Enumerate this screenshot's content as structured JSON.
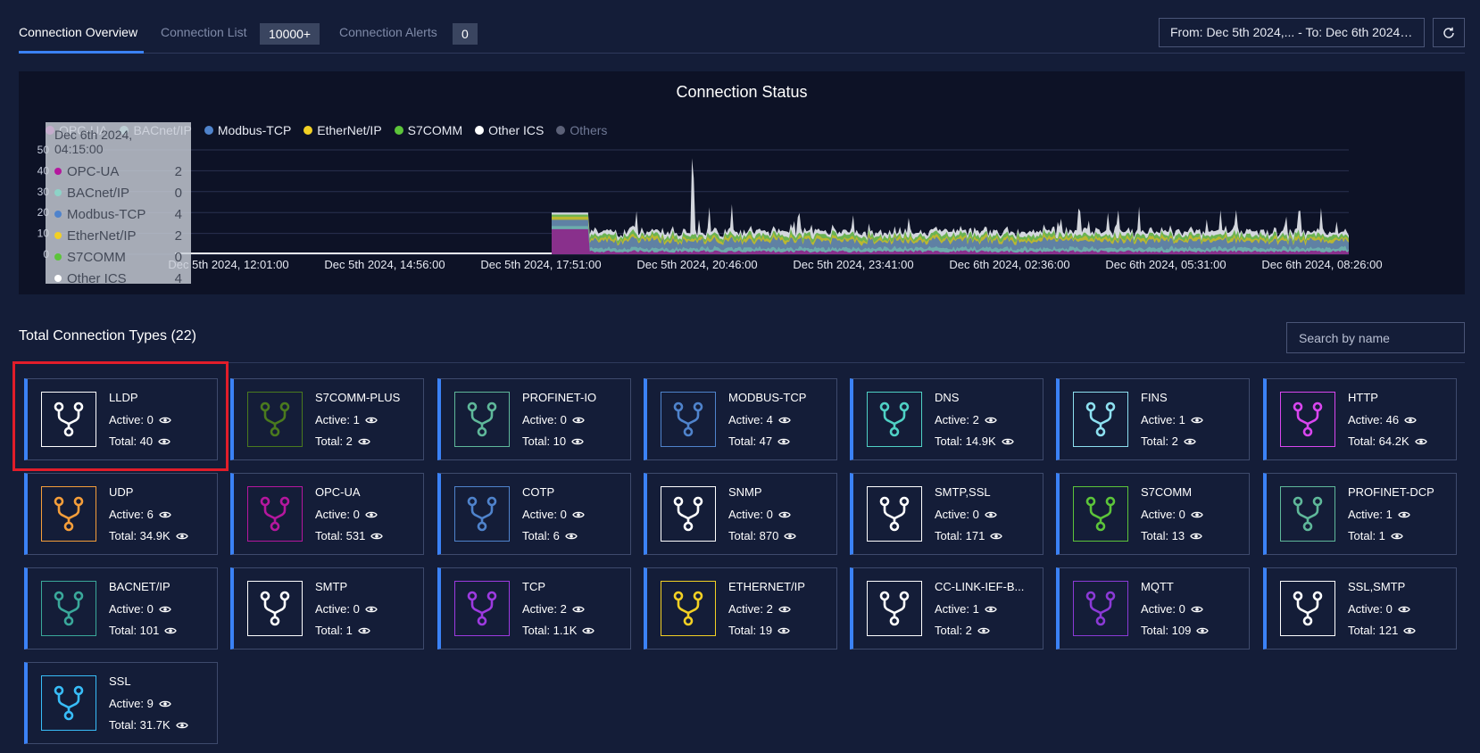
{
  "header": {
    "tabs": [
      {
        "label": "Connection Overview",
        "active": true
      },
      {
        "label": "Connection List",
        "badge": "10000+"
      },
      {
        "label": "Connection Alerts",
        "badge": "0"
      }
    ],
    "date_range": "From: Dec 5th 2024,...  - To: Dec 6th 2024, 09..."
  },
  "chart_data": {
    "type": "area",
    "title": "Connection Status",
    "series": [
      {
        "name": "OPC-UA",
        "color": "#b5179e"
      },
      {
        "name": "BACnet/IP",
        "color": "#8dd3c7"
      },
      {
        "name": "Modbus-TCP",
        "color": "#4f83cc"
      },
      {
        "name": "EtherNet/IP",
        "color": "#f2d024"
      },
      {
        "name": "S7COMM",
        "color": "#5cc43a"
      },
      {
        "name": "Other ICS",
        "color": "#ffffff"
      },
      {
        "name": "Others",
        "color": "#5c6178"
      }
    ],
    "x_ticks": [
      "Dec 5th 2024, 12:01:00",
      "Dec 5th 2024, 14:56:00",
      "Dec 5th 2024, 17:51:00",
      "Dec 5th 2024, 20:46:00",
      "Dec 5th 2024, 23:41:00",
      "Dec 6th 2024, 02:36:00",
      "Dec 6th 2024, 05:31:00",
      "Dec 6th 2024, 08:26:00"
    ],
    "y_ticks": [
      "0",
      "10",
      "20",
      "30",
      "40",
      "50"
    ],
    "ylim": [
      0,
      50
    ],
    "grid": true,
    "legend_placement": "top-left",
    "tooltip": {
      "timestamp": "Dec 6th 2024, 04:15:00",
      "rows": [
        {
          "name": "OPC-UA",
          "value": "2",
          "color": "#b5179e"
        },
        {
          "name": "BACnet/IP",
          "value": "0",
          "color": "#8dd3c7"
        },
        {
          "name": "Modbus-TCP",
          "value": "4",
          "color": "#4f83cc"
        },
        {
          "name": "EtherNet/IP",
          "value": "2",
          "color": "#f2d024"
        },
        {
          "name": "S7COMM",
          "value": "0",
          "color": "#5cc43a"
        },
        {
          "name": "Other ICS",
          "value": "4",
          "color": "#ffffff"
        }
      ]
    }
  },
  "types_section": {
    "title": "Total Connection Types (22)",
    "search_placeholder": "Search by name",
    "cards": [
      {
        "name": "LLDP",
        "active": "Active: 0",
        "total": "Total: 40",
        "color": "#ffffff",
        "selected": true
      },
      {
        "name": "S7COMM-PLUS",
        "active": "Active: 1",
        "total": "Total: 2",
        "color": "#4a7a1e"
      },
      {
        "name": "PROFINET-IO",
        "active": "Active: 0",
        "total": "Total: 10",
        "color": "#5fb89a"
      },
      {
        "name": "MODBUS-TCP",
        "active": "Active: 4",
        "total": "Total: 47",
        "color": "#4f83cc"
      },
      {
        "name": "DNS",
        "active": "Active: 2",
        "total": "Total: 14.9K",
        "color": "#4fd1c5"
      },
      {
        "name": "FINS",
        "active": "Active: 1",
        "total": "Total: 2",
        "color": "#8de0f0"
      },
      {
        "name": "HTTP",
        "active": "Active: 46",
        "total": "Total: 64.2K",
        "color": "#d946ef"
      },
      {
        "name": "UDP",
        "active": "Active: 6",
        "total": "Total: 34.9K",
        "color": "#f59e3a"
      },
      {
        "name": "OPC-UA",
        "active": "Active: 0",
        "total": "Total: 531",
        "color": "#b5179e"
      },
      {
        "name": "COTP",
        "active": "Active: 0",
        "total": "Total: 6",
        "color": "#4f83cc"
      },
      {
        "name": "SNMP",
        "active": "Active: 0",
        "total": "Total: 870",
        "color": "#ffffff"
      },
      {
        "name": "SMTP,SSL",
        "active": "Active: 0",
        "total": "Total: 171",
        "color": "#ffffff"
      },
      {
        "name": "S7COMM",
        "active": "Active: 0",
        "total": "Total: 13",
        "color": "#5cc43a"
      },
      {
        "name": "PROFINET-DCP",
        "active": "Active: 1",
        "total": "Total: 1",
        "color": "#5fb89a"
      },
      {
        "name": "BACNET/IP",
        "active": "Active: 0",
        "total": "Total: 101",
        "color": "#3aa89a"
      },
      {
        "name": "SMTP",
        "active": "Active: 0",
        "total": "Total: 1",
        "color": "#ffffff"
      },
      {
        "name": "TCP",
        "active": "Active: 2",
        "total": "Total: 1.1K",
        "color": "#9d3ae0"
      },
      {
        "name": "ETHERNET/IP",
        "active": "Active: 2",
        "total": "Total: 19",
        "color": "#f2d024"
      },
      {
        "name": "CC-LINK-IEF-B...",
        "active": "Active: 1",
        "total": "Total: 2",
        "color": "#ffffff"
      },
      {
        "name": "MQTT",
        "active": "Active: 0",
        "total": "Total: 109",
        "color": "#8b3ad6"
      },
      {
        "name": "SSL,SMTP",
        "active": "Active: 0",
        "total": "Total: 121",
        "color": "#ffffff"
      },
      {
        "name": "SSL",
        "active": "Active: 9",
        "total": "Total: 31.7K",
        "color": "#38bdf8"
      }
    ]
  }
}
